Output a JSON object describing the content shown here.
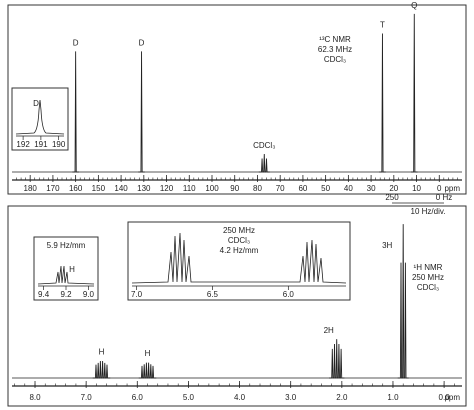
{
  "chart_data": [
    {
      "type": "spectrum",
      "title": "¹³C NMR",
      "subtitle": [
        "62.3 MHz",
        "CDCl₃"
      ],
      "x": [
        160,
        131,
        77,
        25,
        11
      ],
      "labels": [
        "D",
        "D",
        "CDCl₃",
        "T",
        "Q"
      ],
      "values": [
        74,
        74,
        11,
        85,
        97
      ],
      "xlim": [
        188,
        -10
      ],
      "xticks": [
        180,
        170,
        160,
        150,
        140,
        130,
        120,
        110,
        100,
        90,
        80,
        70,
        60,
        50,
        40,
        30,
        20,
        10,
        0
      ],
      "x_unit": "ppm",
      "color": "#222222",
      "insets": [
        {
          "label": "D",
          "xlim": [
            192.4,
            189.7
          ],
          "xticks": [
            192,
            191,
            190
          ]
        }
      ]
    },
    {
      "type": "spectrum",
      "title": "¹H NMR",
      "subtitle": [
        "250 MHz",
        "CDCl₃"
      ],
      "x": [
        6.7,
        5.8,
        2.1,
        0.8
      ],
      "labels": [
        "H",
        "H",
        "2H",
        "3H"
      ],
      "values": [
        11,
        10,
        24,
        95
      ],
      "xlim": [
        8.45,
        -0.35
      ],
      "xticks": [
        {
          "value": 8,
          "label": "8.0"
        },
        {
          "value": 7,
          "label": "7.0"
        },
        {
          "value": 6,
          "label": "6.0"
        },
        {
          "value": 5,
          "label": "5.0"
        },
        {
          "value": 4,
          "label": "4.0"
        },
        {
          "value": 3,
          "label": "3.0"
        },
        {
          "value": 2,
          "label": "2.0"
        },
        {
          "value": 1,
          "label": "1.0"
        },
        {
          "value": 0,
          "label": "0.0"
        }
      ],
      "x_unit": "ppm",
      "color": "#222222",
      "scale": {
        "labels": [
          "250",
          "0 Hz"
        ],
        "caption": "10 Hz/div."
      },
      "insets": [
        {
          "caption": [
            "5.9 Hz/mm"
          ],
          "label": "H",
          "xlim": [
            9.45,
            8.95
          ],
          "xticks": [
            {
              "value": 9.4,
              "label": "9.4"
            },
            {
              "value": 9.2,
              "label": "9.2"
            },
            {
              "value": 9,
              "label": "9.0"
            }
          ]
        },
        {
          "caption": [
            "250 MHz",
            "CDCl₃",
            "4.2 Hz/mm"
          ],
          "xlim": [
            7.03,
            5.62
          ],
          "xticks": [
            {
              "value": 7,
              "label": "7.0"
            },
            {
              "value": 6.5,
              "label": "6.5"
            },
            {
              "value": 6,
              "label": "6.0"
            }
          ]
        }
      ]
    }
  ]
}
